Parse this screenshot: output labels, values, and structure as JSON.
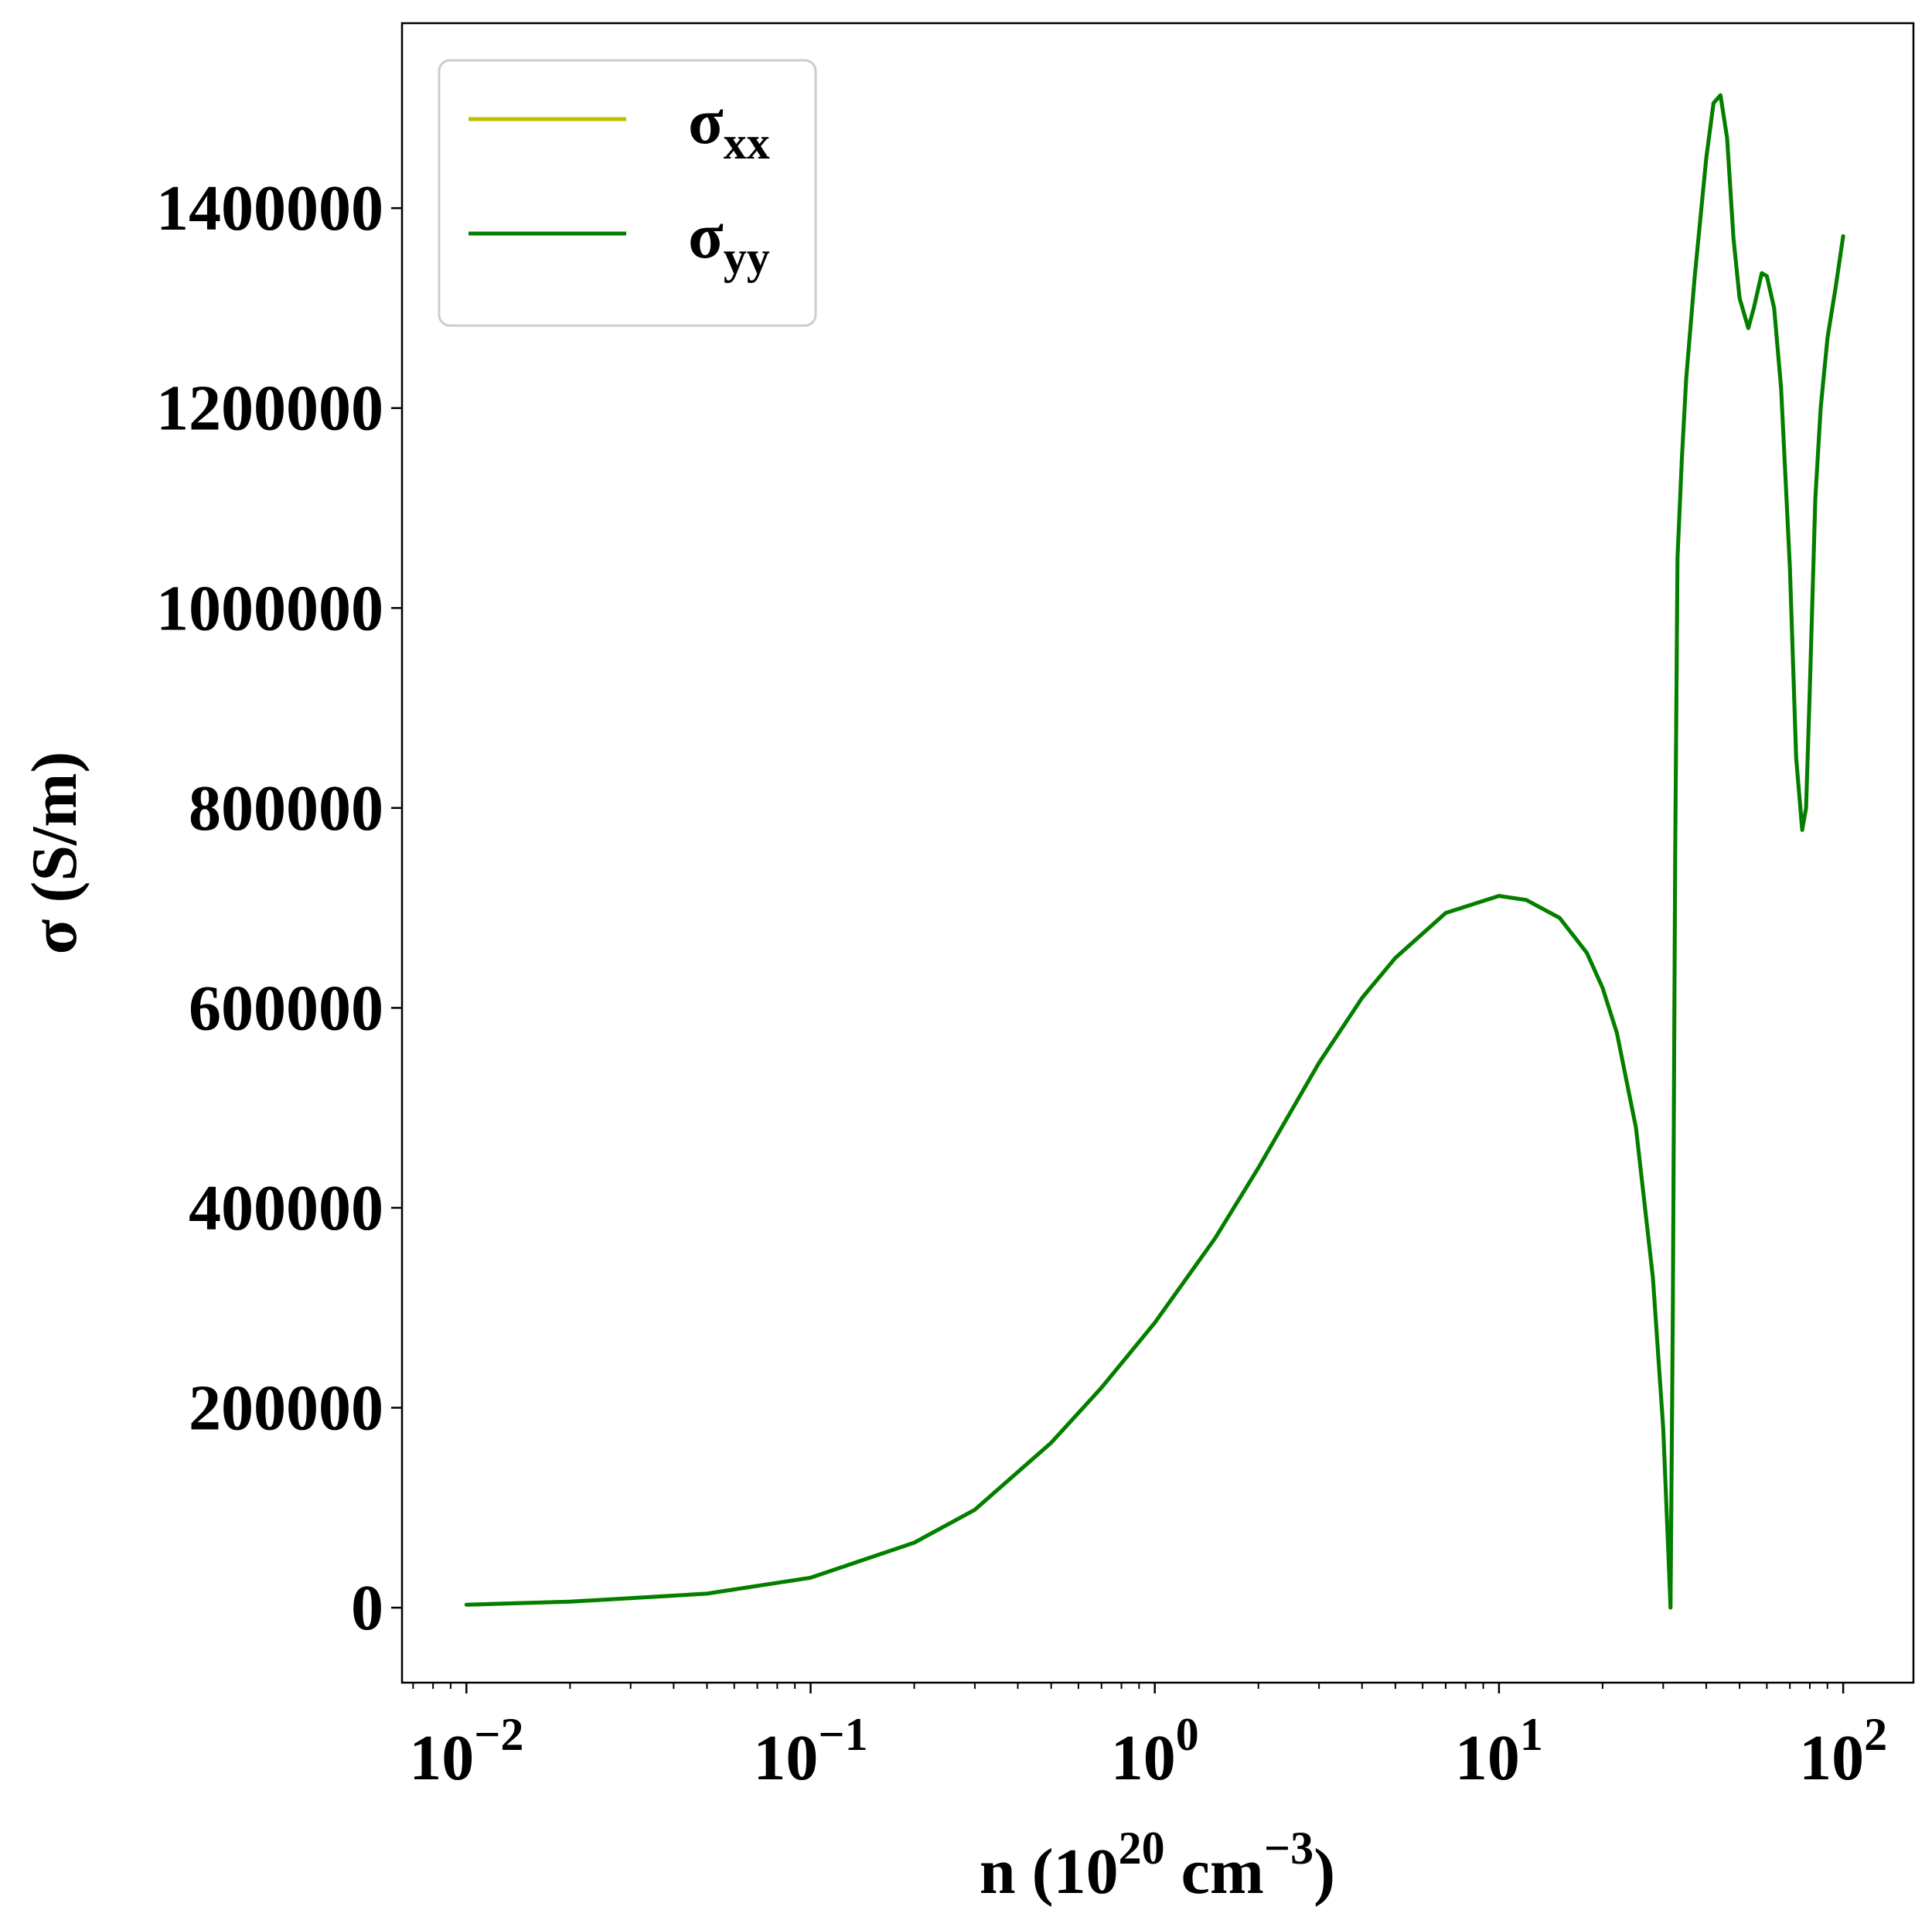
{
  "chart_data": {
    "type": "line",
    "title": "",
    "xlabel": {
      "parts": [
        "n (10",
        "20",
        " cm",
        "−3",
        ")"
      ]
    },
    "ylabel": "σ (S/m)",
    "xscale": "log",
    "xlim": [
      0.0065,
      160
    ],
    "ylim": [
      -75000,
      1585000
    ],
    "grid": false,
    "legend_position": "top-left",
    "x_ticks": [
      {
        "base": "10",
        "exp": "−2",
        "value": 0.01
      },
      {
        "base": "10",
        "exp": "−1",
        "value": 0.1
      },
      {
        "base": "10",
        "exp": "0",
        "value": 1
      },
      {
        "base": "10",
        "exp": "1",
        "value": 10
      },
      {
        "base": "10",
        "exp": "2",
        "value": 100
      }
    ],
    "y_ticks": [
      {
        "label": "0",
        "value": 0
      },
      {
        "label": "200000",
        "value": 200000
      },
      {
        "label": "400000",
        "value": 400000
      },
      {
        "label": "600000",
        "value": 600000
      },
      {
        "label": "800000",
        "value": 800000
      },
      {
        "label": "1000000",
        "value": 1000000
      },
      {
        "label": "1200000",
        "value": 1200000
      },
      {
        "label": "1400000",
        "value": 1400000
      }
    ],
    "series": [
      {
        "name": "σxx",
        "name_base": "σ",
        "name_sub": "xx",
        "color": "#bfbf00",
        "x": [
          0.01,
          0.02,
          0.05,
          0.1,
          0.2,
          0.3,
          0.5,
          0.7,
          1.0,
          1.5,
          2.0,
          3.0,
          4.0,
          5.0,
          7.0,
          10.0,
          12.0,
          15.0,
          18.0,
          20.0,
          22.0,
          25.0,
          28.0,
          30.0,
          31.0,
          31.5,
          32.0,
          32.5,
          33.0,
          34.0,
          35.0,
          37.0,
          40.0,
          42.0,
          44.0,
          46.0,
          48.0,
          50.0,
          53.0,
          55.0,
          58.0,
          60.0,
          63.0,
          66.0,
          70.0,
          73.0,
          76.0,
          78.0,
          80.0,
          83.0,
          86.0,
          90.0,
          95.0,
          100.0
        ],
        "values": [
          3000,
          6000,
          14000,
          30000,
          65000,
          98000,
          165000,
          220000,
          285000,
          370000,
          440000,
          545000,
          610000,
          650000,
          695000,
          712000,
          708000,
          690000,
          655000,
          620000,
          575000,
          480000,
          330000,
          180000,
          60000,
          0,
          300000,
          750000,
          1050000,
          1150000,
          1230000,
          1330000,
          1450000,
          1505000,
          1513000,
          1470000,
          1370000,
          1310000,
          1280000,
          1300000,
          1335000,
          1332000,
          1300000,
          1220000,
          1040000,
          850000,
          778000,
          800000,
          920000,
          1110000,
          1200000,
          1270000,
          1320000,
          1372000
        ]
      },
      {
        "name": "σyy",
        "name_base": "σ",
        "name_sub": "yy",
        "color": "#007f00",
        "x": [
          0.01,
          0.02,
          0.05,
          0.1,
          0.2,
          0.3,
          0.5,
          0.7,
          1.0,
          1.5,
          2.0,
          3.0,
          4.0,
          5.0,
          7.0,
          10.0,
          12.0,
          15.0,
          18.0,
          20.0,
          22.0,
          25.0,
          28.0,
          30.0,
          31.0,
          31.5,
          32.0,
          32.5,
          33.0,
          34.0,
          35.0,
          37.0,
          40.0,
          42.0,
          44.0,
          46.0,
          48.0,
          50.0,
          53.0,
          55.0,
          58.0,
          60.0,
          63.0,
          66.0,
          70.0,
          73.0,
          76.0,
          78.0,
          80.0,
          83.0,
          86.0,
          90.0,
          95.0,
          100.0
        ],
        "values": [
          3000,
          6000,
          14000,
          30000,
          65000,
          98000,
          165000,
          220000,
          285000,
          370000,
          440000,
          545000,
          610000,
          650000,
          695000,
          712000,
          708000,
          690000,
          655000,
          620000,
          575000,
          480000,
          330000,
          180000,
          60000,
          0,
          300000,
          750000,
          1050000,
          1150000,
          1230000,
          1330000,
          1450000,
          1505000,
          1513000,
          1470000,
          1370000,
          1310000,
          1280000,
          1300000,
          1335000,
          1332000,
          1300000,
          1220000,
          1040000,
          850000,
          778000,
          800000,
          920000,
          1110000,
          1200000,
          1270000,
          1320000,
          1372000
        ]
      }
    ]
  }
}
